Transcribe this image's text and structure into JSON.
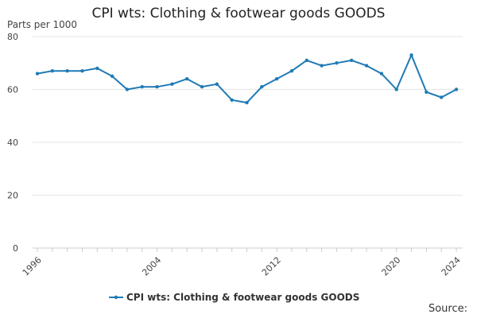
{
  "chart_data": {
    "type": "line",
    "title": "CPI wts: Clothing & footwear goods GOODS",
    "ylabel": "Parts per 1000",
    "xlabel": "",
    "source": "Source:",
    "ylim": [
      0,
      80
    ],
    "yticks": [
      "0",
      "20",
      "40",
      "60",
      "80"
    ],
    "xlim": [
      1996,
      2024
    ],
    "xticks": [
      "1996",
      "2004",
      "2012",
      "2020",
      "2024"
    ],
    "grid": "horizontal",
    "legend_position": "bottom",
    "colors": {
      "series": "#1f7ab5",
      "grid": "#e6e6e6",
      "axis": "#cccccc"
    },
    "series": [
      {
        "name": "CPI wts: Clothing & footwear goods GOODS",
        "x": [
          1996,
          1997,
          1998,
          1999,
          2000,
          2001,
          2002,
          2003,
          2004,
          2005,
          2006,
          2007,
          2008,
          2009,
          2010,
          2011,
          2012,
          2013,
          2014,
          2015,
          2016,
          2017,
          2018,
          2019,
          2020,
          2021,
          2022,
          2023,
          2024
        ],
        "values": [
          66,
          67,
          67,
          67,
          68,
          65,
          60,
          61,
          61,
          62,
          64,
          61,
          62,
          56,
          55,
          61,
          64,
          67,
          71,
          69,
          70,
          71,
          69,
          66,
          60,
          73,
          59,
          57,
          60
        ]
      }
    ]
  }
}
